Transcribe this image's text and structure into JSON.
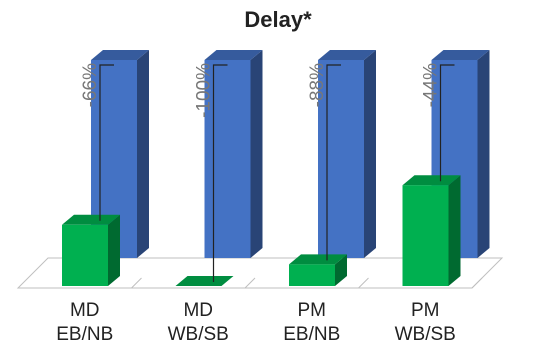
{
  "chart_data": {
    "type": "bar",
    "title": "Delay*",
    "categories": [
      [
        "MD",
        "EB/NB"
      ],
      [
        "MD",
        "WB/SB"
      ],
      [
        "PM",
        "EB/NB"
      ],
      [
        "PM",
        "WB/SB"
      ]
    ],
    "series": [
      {
        "values": [
          100,
          100,
          100,
          100
        ],
        "color": "#4472c4"
      },
      {
        "values": [
          34,
          0,
          12,
          56
        ],
        "color": "#00b050"
      }
    ],
    "annotations": [
      "-66%",
      "-100%",
      "-88%",
      "-44%"
    ],
    "ylim": [
      0,
      100
    ],
    "grid": false,
    "legend": "none"
  }
}
